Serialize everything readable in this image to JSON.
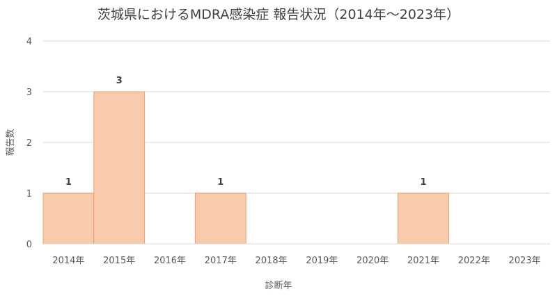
{
  "chart_data": {
    "type": "bar",
    "title": "茨城県におけるMDRA感染症 報告状況（2014年～2023年）",
    "xlabel": "診断年",
    "ylabel": "報告数",
    "categories": [
      "2014年",
      "2015年",
      "2016年",
      "2017年",
      "2018年",
      "2019年",
      "2020年",
      "2021年",
      "2022年",
      "2023年"
    ],
    "values": [
      1,
      3,
      0,
      1,
      0,
      0,
      0,
      1,
      0,
      0
    ],
    "data_labels": [
      "1",
      "3",
      "",
      "1",
      "",
      "",
      "",
      "1",
      "",
      ""
    ],
    "ylim": [
      0,
      4
    ],
    "yticks": [
      "0",
      "1",
      "2",
      "3",
      "4"
    ],
    "grid": true,
    "legend": "none",
    "colors": {
      "bar_fill": "#F8CBAD",
      "bar_stroke": "#ED9F6B",
      "grid": "#D9D9D9"
    }
  }
}
